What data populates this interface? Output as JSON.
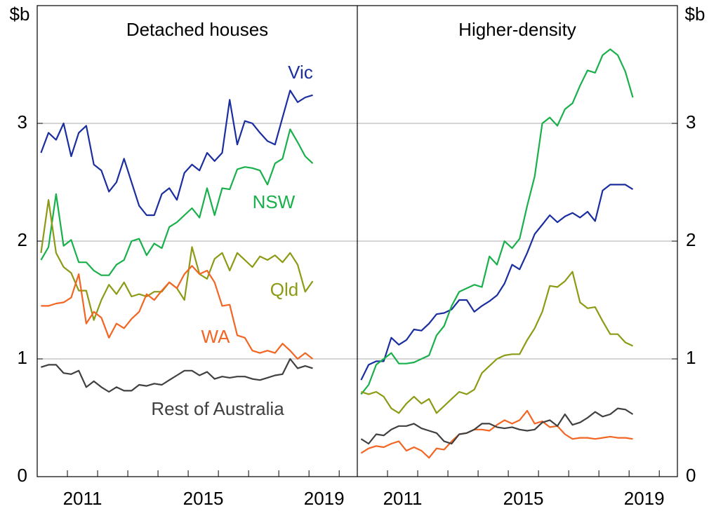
{
  "chart_data": [
    {
      "type": "line",
      "title": "Detached houses",
      "ylabel": "$b",
      "yaxis_side": "left",
      "x": [
        2010.125,
        2010.375,
        2010.625,
        2010.875,
        2011.125,
        2011.375,
        2011.625,
        2011.875,
        2012.125,
        2012.375,
        2012.625,
        2012.875,
        2013.125,
        2013.375,
        2013.625,
        2013.875,
        2014.125,
        2014.375,
        2014.625,
        2014.875,
        2015.125,
        2015.375,
        2015.625,
        2015.875,
        2016.125,
        2016.375,
        2016.625,
        2016.875,
        2017.125,
        2017.375,
        2017.625,
        2017.875,
        2018.125,
        2018.375,
        2018.625,
        2018.875,
        2019.125
      ],
      "xlim": [
        2010,
        2020.6
      ],
      "xticks": [
        {
          "value": 2011.5,
          "label": "2011"
        },
        {
          "value": 2015.5,
          "label": "2015"
        },
        {
          "value": 2019.5,
          "label": "2019"
        }
      ],
      "xminorticks": [
        2011,
        2012,
        2013,
        2014,
        2015,
        2016,
        2017,
        2018,
        2019,
        2020
      ],
      "ylim": [
        0,
        4
      ],
      "yticks": [
        0,
        1,
        2,
        3
      ],
      "grid": true,
      "series": [
        {
          "name": "Vic",
          "color": "#1a2ea0",
          "values": [
            2.75,
            2.92,
            2.86,
            3.0,
            2.72,
            2.92,
            2.98,
            2.65,
            2.6,
            2.42,
            2.5,
            2.7,
            2.5,
            2.3,
            2.22,
            2.22,
            2.4,
            2.45,
            2.35,
            2.58,
            2.65,
            2.6,
            2.75,
            2.68,
            2.75,
            3.2,
            2.82,
            3.02,
            3.0,
            2.92,
            2.85,
            2.82,
            3.05,
            3.28,
            3.18,
            3.22,
            3.24
          ]
        },
        {
          "name": "NSW",
          "color": "#19b04b",
          "values": [
            1.84,
            1.95,
            2.4,
            1.96,
            2.01,
            1.82,
            1.82,
            1.75,
            1.71,
            1.71,
            1.8,
            1.84,
            2.0,
            2.02,
            1.88,
            1.98,
            1.94,
            2.12,
            2.16,
            2.22,
            2.28,
            2.2,
            2.45,
            2.22,
            2.45,
            2.44,
            2.61,
            2.63,
            2.62,
            2.6,
            2.48,
            2.66,
            2.7,
            2.95,
            2.84,
            2.72,
            2.66
          ]
        },
        {
          "name": "Qld",
          "color": "#8c9a14",
          "values": [
            1.9,
            2.35,
            1.9,
            1.78,
            1.73,
            1.58,
            1.58,
            1.33,
            1.5,
            1.63,
            1.55,
            1.65,
            1.53,
            1.55,
            1.53,
            1.57,
            1.57,
            1.65,
            1.6,
            1.5,
            1.95,
            1.72,
            1.68,
            1.85,
            1.9,
            1.75,
            1.9,
            1.84,
            1.78,
            1.87,
            1.84,
            1.88,
            1.82,
            1.9,
            1.8,
            1.57,
            1.66
          ]
        },
        {
          "name": "WA",
          "color": "#f26522",
          "values": [
            1.45,
            1.45,
            1.47,
            1.48,
            1.52,
            1.72,
            1.3,
            1.4,
            1.35,
            1.18,
            1.3,
            1.26,
            1.34,
            1.4,
            1.55,
            1.5,
            1.58,
            1.65,
            1.6,
            1.72,
            1.79,
            1.72,
            1.75,
            1.65,
            1.45,
            1.46,
            1.2,
            1.18,
            1.07,
            1.05,
            1.07,
            1.05,
            1.13,
            1.07,
            1.0,
            1.05,
            1.0
          ]
        },
        {
          "name": "Rest of Australia",
          "color": "#404040",
          "values": [
            0.93,
            0.95,
            0.95,
            0.88,
            0.87,
            0.9,
            0.76,
            0.81,
            0.76,
            0.72,
            0.76,
            0.73,
            0.73,
            0.78,
            0.77,
            0.79,
            0.78,
            0.82,
            0.86,
            0.9,
            0.9,
            0.86,
            0.89,
            0.83,
            0.85,
            0.84,
            0.85,
            0.85,
            0.83,
            0.82,
            0.84,
            0.86,
            0.87,
            1.0,
            0.92,
            0.94,
            0.92
          ]
        }
      ]
    },
    {
      "type": "line",
      "title": "Higher-density",
      "ylabel": "$b",
      "yaxis_side": "right",
      "x": [
        2010.125,
        2010.375,
        2010.625,
        2010.875,
        2011.125,
        2011.375,
        2011.625,
        2011.875,
        2012.125,
        2012.375,
        2012.625,
        2012.875,
        2013.125,
        2013.375,
        2013.625,
        2013.875,
        2014.125,
        2014.375,
        2014.625,
        2014.875,
        2015.125,
        2015.375,
        2015.625,
        2015.875,
        2016.125,
        2016.375,
        2016.625,
        2016.875,
        2017.125,
        2017.375,
        2017.625,
        2017.875,
        2018.125,
        2018.375,
        2018.625,
        2018.875,
        2019.125
      ],
      "xlim": [
        2010,
        2020.6
      ],
      "xticks": [
        {
          "value": 2011.5,
          "label": "2011"
        },
        {
          "value": 2015.5,
          "label": "2015"
        },
        {
          "value": 2019.5,
          "label": "2019"
        }
      ],
      "xminorticks": [
        2011,
        2012,
        2013,
        2014,
        2015,
        2016,
        2017,
        2018,
        2019,
        2020
      ],
      "ylim": [
        0,
        4
      ],
      "yticks": [
        0,
        1,
        2,
        3
      ],
      "grid": true,
      "series": [
        {
          "color": "#1a2ea0",
          "values": [
            0.82,
            0.95,
            0.98,
            0.98,
            1.18,
            1.12,
            1.16,
            1.25,
            1.24,
            1.3,
            1.38,
            1.39,
            1.42,
            1.5,
            1.5,
            1.4,
            1.45,
            1.49,
            1.54,
            1.64,
            1.8,
            1.76,
            1.9,
            2.06,
            2.14,
            2.22,
            2.16,
            2.21,
            2.24,
            2.2,
            2.25,
            2.17,
            2.43,
            2.48,
            2.48,
            2.48,
            2.44
          ]
        },
        {
          "color": "#19b04b",
          "values": [
            0.7,
            0.78,
            0.95,
            1.0,
            1.05,
            0.96,
            0.96,
            0.97,
            1.0,
            1.03,
            1.2,
            1.28,
            1.45,
            1.57,
            1.6,
            1.63,
            1.61,
            1.87,
            1.8,
            2.0,
            1.94,
            2.02,
            2.3,
            2.55,
            3.0,
            3.05,
            2.98,
            3.12,
            3.17,
            3.32,
            3.45,
            3.43,
            3.58,
            3.63,
            3.58,
            3.44,
            3.22
          ]
        },
        {
          "color": "#8c9a14",
          "values": [
            0.72,
            0.7,
            0.72,
            0.68,
            0.58,
            0.54,
            0.62,
            0.68,
            0.62,
            0.66,
            0.54,
            0.6,
            0.66,
            0.72,
            0.7,
            0.74,
            0.88,
            0.94,
            1.0,
            1.03,
            1.04,
            1.04,
            1.16,
            1.26,
            1.4,
            1.62,
            1.61,
            1.66,
            1.74,
            1.48,
            1.43,
            1.44,
            1.32,
            1.21,
            1.21,
            1.14,
            1.11
          ]
        },
        {
          "color": "#f26522",
          "values": [
            0.2,
            0.24,
            0.26,
            0.25,
            0.28,
            0.3,
            0.22,
            0.25,
            0.22,
            0.16,
            0.24,
            0.23,
            0.3,
            0.36,
            0.37,
            0.4,
            0.4,
            0.39,
            0.44,
            0.48,
            0.45,
            0.48,
            0.56,
            0.45,
            0.47,
            0.42,
            0.43,
            0.36,
            0.32,
            0.33,
            0.33,
            0.32,
            0.33,
            0.34,
            0.33,
            0.33,
            0.32
          ]
        },
        {
          "color": "#404040",
          "values": [
            0.32,
            0.28,
            0.36,
            0.35,
            0.4,
            0.43,
            0.43,
            0.45,
            0.41,
            0.39,
            0.37,
            0.3,
            0.28,
            0.36,
            0.37,
            0.4,
            0.45,
            0.45,
            0.42,
            0.41,
            0.42,
            0.4,
            0.39,
            0.4,
            0.46,
            0.48,
            0.43,
            0.53,
            0.44,
            0.46,
            0.5,
            0.55,
            0.51,
            0.53,
            0.58,
            0.57,
            0.53
          ]
        }
      ]
    }
  ]
}
